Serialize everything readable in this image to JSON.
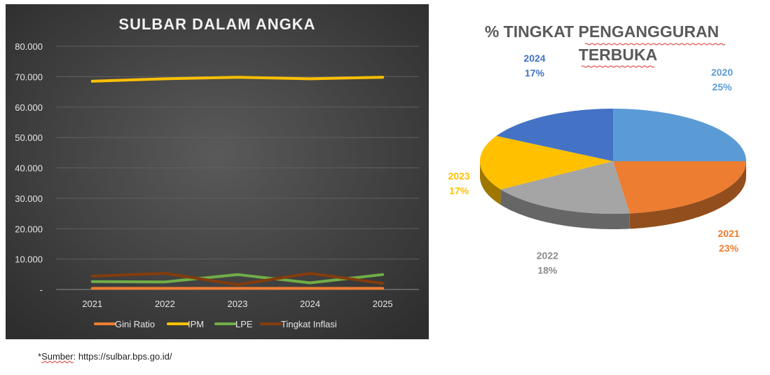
{
  "chart_data": [
    {
      "type": "line",
      "title": "SULBAR DALAM ANGKA",
      "categories": [
        "2021",
        "2022",
        "2023",
        "2024",
        "2025"
      ],
      "y_ticks": [
        "-",
        "10.000",
        "20.000",
        "30.000",
        "40.000",
        "50.000",
        "60.000",
        "70.000",
        "80.000"
      ],
      "ylim": [
        0,
        80
      ],
      "grid": true,
      "legend_position": "bottom",
      "series": [
        {
          "name": "Gini Ratio",
          "color": "#ed7d31",
          "values": [
            0.37,
            0.36,
            0.36,
            0.37,
            0.36
          ]
        },
        {
          "name": "IPM",
          "color": "#ffc000",
          "values": [
            68.5,
            69.3,
            69.8,
            69.3,
            69.8
          ]
        },
        {
          "name": "LPE",
          "color": "#70ad47",
          "values": [
            2.6,
            2.5,
            4.9,
            2.2,
            4.9
          ]
        },
        {
          "name": "Tingkat Inflasi",
          "color": "#843c0c",
          "values": [
            4.4,
            5.3,
            1.6,
            5.3,
            2.0
          ]
        }
      ]
    },
    {
      "type": "pie",
      "title_line1": "% TINGKAT PENGANGGURAN",
      "title_line2": "TERBUKA",
      "slices": [
        {
          "label": "2020",
          "pct_label": "25%",
          "value": 25,
          "color": "#5b9bd5"
        },
        {
          "label": "2021",
          "pct_label": "23%",
          "value": 23,
          "color": "#ed7d31"
        },
        {
          "label": "2022",
          "pct_label": "18%",
          "value": 18,
          "color": "#a5a5a5"
        },
        {
          "label": "2023",
          "pct_label": "17%",
          "value": 17,
          "color": "#ffc000"
        },
        {
          "label": "2024",
          "pct_label": "17%",
          "value": 17,
          "color": "#4472c4"
        }
      ]
    }
  ],
  "source": {
    "prefix": "*",
    "word": "Sumber",
    "rest": ": https://sulbar.bps.go.id/"
  }
}
